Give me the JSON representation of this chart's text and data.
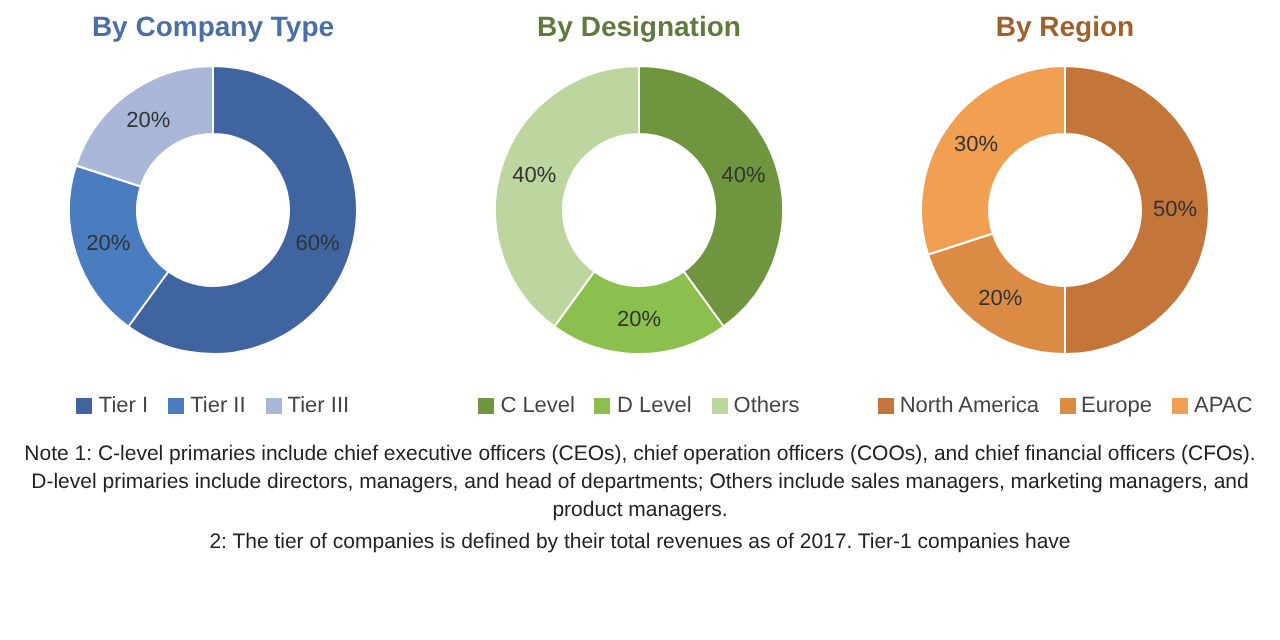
{
  "chart_data": [
    {
      "type": "donut",
      "title": "By Company Type",
      "categories": [
        "Tier I",
        "Tier II",
        "Tier III"
      ],
      "values": [
        60,
        20,
        20
      ],
      "value_labels": [
        "60%",
        "20%",
        "20%"
      ],
      "colors": [
        "#3f64a0",
        "#4a7cc0",
        "#a9b8d8"
      ],
      "legend": "bottom",
      "annotations": [
        "Note 1: C-level primaries include chief executive officers (CEOs), chief operation officers (COOs), and chief financial officers (CFOs). D-level primaries include directors, managers, and head of departments; Others include sales managers, marketing managers, and product managers.",
        "2: The tier of companies is defined by their total revenues as of 2017. Tier-1 companies have"
      ]
    },
    {
      "type": "donut",
      "title": "By Designation",
      "categories": [
        "C Level",
        "D Level",
        "Others"
      ],
      "values": [
        40,
        20,
        40
      ],
      "value_labels": [
        "40%",
        "20%",
        "40%"
      ],
      "colors": [
        "#6f963f",
        "#8bbf4e",
        "#bdd6a0"
      ],
      "legend": "bottom"
    },
    {
      "type": "donut",
      "title": "By Region",
      "categories": [
        "North America",
        "Europe",
        "APAC"
      ],
      "values": [
        50,
        20,
        30
      ],
      "value_labels": [
        "50%",
        "20%",
        "30%"
      ],
      "colors": [
        "#c4763a",
        "#dc8b44",
        "#f0a050"
      ],
      "legend": "bottom"
    }
  ]
}
